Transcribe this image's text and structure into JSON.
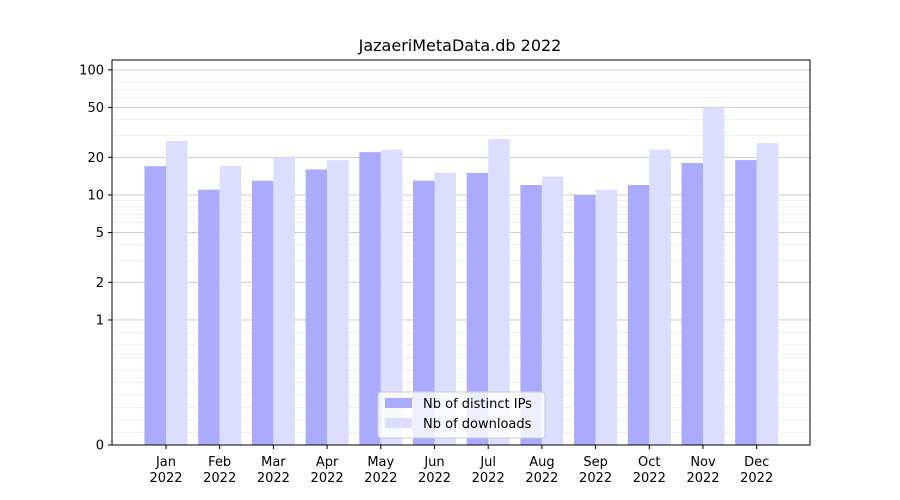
{
  "chart_data": {
    "type": "bar",
    "title": "JazaeriMetaData.db 2022",
    "xlabel": "",
    "ylabel": "",
    "yscale": "symlog",
    "ylim": [
      0,
      120
    ],
    "yticks": [
      0,
      1,
      2,
      5,
      10,
      20,
      50,
      100
    ],
    "ytick_labels": [
      "0",
      "1",
      "2",
      "5",
      "10",
      "20",
      "50",
      "100"
    ],
    "grid": true,
    "legend_position": "bottom-center",
    "categories": [
      {
        "month": "Jan",
        "year": "2022"
      },
      {
        "month": "Feb",
        "year": "2022"
      },
      {
        "month": "Mar",
        "year": "2022"
      },
      {
        "month": "Apr",
        "year": "2022"
      },
      {
        "month": "May",
        "year": "2022"
      },
      {
        "month": "Jun",
        "year": "2022"
      },
      {
        "month": "Jul",
        "year": "2022"
      },
      {
        "month": "Aug",
        "year": "2022"
      },
      {
        "month": "Sep",
        "year": "2022"
      },
      {
        "month": "Oct",
        "year": "2022"
      },
      {
        "month": "Nov",
        "year": "2022"
      },
      {
        "month": "Dec",
        "year": "2022"
      }
    ],
    "series": [
      {
        "name": "Nb of distinct IPs",
        "color": "#aaaaff",
        "values": [
          17,
          11,
          13,
          16,
          22,
          13,
          15,
          12,
          10,
          12,
          18,
          19
        ]
      },
      {
        "name": "Nb of downloads",
        "color": "#ddddff",
        "values": [
          27,
          17,
          20,
          19,
          23,
          15,
          28,
          14,
          11,
          23,
          50,
          26
        ]
      }
    ]
  }
}
